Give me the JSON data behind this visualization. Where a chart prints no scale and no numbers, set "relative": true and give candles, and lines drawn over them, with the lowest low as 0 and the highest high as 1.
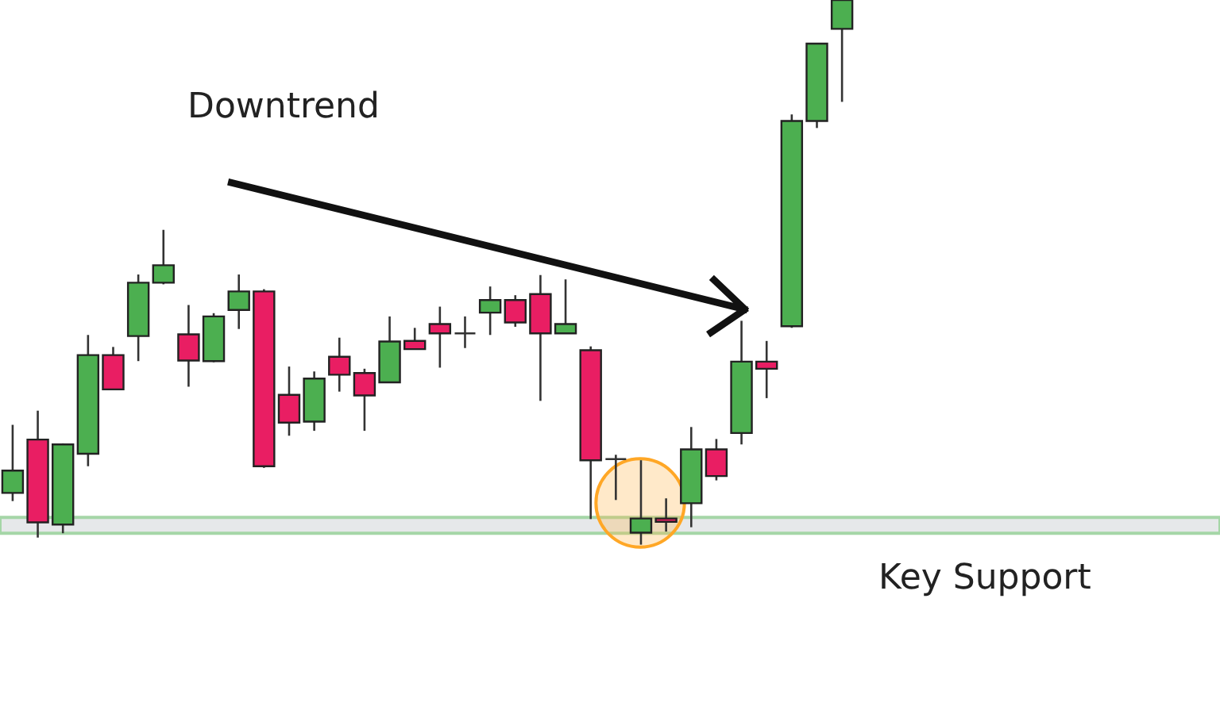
{
  "chart_data": {
    "type": "candlestick",
    "relative": true,
    "categories": [
      null,
      null,
      null,
      null,
      null,
      null,
      null,
      null,
      null,
      null,
      null,
      null,
      null,
      null,
      null,
      null,
      null,
      null,
      null,
      null,
      null,
      null,
      null,
      null,
      null,
      null,
      null,
      null,
      null,
      null,
      null,
      null,
      null,
      null
    ],
    "ohlc": [
      [
        0.095,
        0.22,
        0.08,
        0.136
      ],
      [
        0.193,
        0.246,
        0.013,
        0.041
      ],
      [
        0.037,
        0.186,
        0.021,
        0.184
      ],
      [
        0.167,
        0.385,
        0.144,
        0.348
      ],
      [
        0.348,
        0.363,
        0.285,
        0.285
      ],
      [
        0.383,
        0.496,
        0.337,
        0.481
      ],
      [
        0.481,
        0.578,
        0.478,
        0.513
      ],
      [
        0.386,
        0.44,
        0.29,
        0.338
      ],
      [
        0.337,
        0.425,
        0.335,
        0.419
      ],
      [
        0.431,
        0.496,
        0.396,
        0.465
      ],
      [
        0.465,
        0.469,
        0.141,
        0.144
      ],
      [
        0.275,
        0.327,
        0.2,
        0.224
      ],
      [
        0.226,
        0.318,
        0.209,
        0.305
      ],
      [
        0.345,
        0.38,
        0.281,
        0.312
      ],
      [
        0.315,
        0.323,
        0.209,
        0.274
      ],
      [
        0.298,
        0.419,
        0.298,
        0.373
      ],
      [
        0.374,
        0.398,
        0.359,
        0.359
      ],
      [
        0.405,
        0.437,
        0.325,
        0.388
      ],
      [
        0.388,
        0.419,
        0.361,
        0.388
      ],
      [
        0.426,
        0.474,
        0.385,
        0.449
      ],
      [
        0.449,
        0.458,
        0.4,
        0.408
      ],
      [
        0.46,
        0.495,
        0.264,
        0.388
      ],
      [
        0.388,
        0.487,
        0.388,
        0.405
      ],
      [
        0.357,
        0.364,
        0.047,
        0.155
      ],
      [
        0.157,
        0.165,
        0.082,
        0.157
      ],
      [
        0.022,
        0.155,
        0,
        0.048
      ],
      [
        0.048,
        0.085,
        0.024,
        0.042
      ],
      [
        0.076,
        0.216,
        0.032,
        0.175
      ],
      [
        0.175,
        0.194,
        0.118,
        0.126
      ],
      [
        0.205,
        0.411,
        0.184,
        0.336
      ],
      [
        0.336,
        0.374,
        0.269,
        0.323
      ],
      [
        0.401,
        0.79,
        0.398,
        0.778
      ],
      [
        0.778,
        0.92,
        0.765,
        0.92
      ],
      [
        0.947,
        1,
        0.813,
        1
      ]
    ],
    "colors": [
      "#4caf50",
      "#e91e63",
      "#4caf50",
      "#4caf50",
      "#e91e63",
      "#4caf50",
      "#4caf50",
      "#e91e63",
      "#4caf50",
      "#4caf50",
      "#e91e63",
      "#e91e63",
      "#4caf50",
      "#e91e63",
      "#e91e63",
      "#4caf50",
      "#e91e63",
      "#e91e63",
      "#333333",
      "#4caf50",
      "#e91e63",
      "#e91e63",
      "#4caf50",
      "#e91e63",
      "#333333",
      "#4caf50",
      "#e91e63",
      "#4caf50",
      "#e91e63",
      "#4caf50",
      "#e91e63",
      "#4caf50",
      "#4caf50",
      "#4caf50"
    ],
    "bands": [
      {
        "axis": "y",
        "from": 0.021,
        "to": 0.05,
        "label": "Key Support",
        "color": "#e6e8ea"
      }
    ],
    "annotations": [
      "Downtrend"
    ]
  }
}
